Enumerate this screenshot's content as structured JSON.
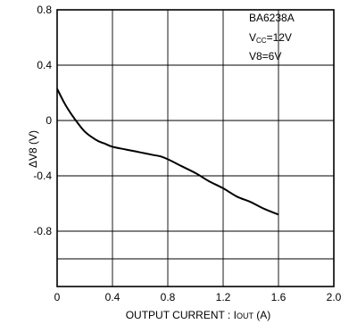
{
  "chart_data": {
    "type": "line",
    "xlabel_main": "OUTPUT  CURRENT : I",
    "xlabel_sub": "OUT",
    "xlabel_unit": "  (A)",
    "ylabel_delta": "Δ",
    "ylabel_main": "V8  (V)",
    "xlim": [
      0,
      2.0
    ],
    "ylim": [
      -1.2,
      0.8
    ],
    "x_ticks": [
      "0",
      "0.4",
      "0.8",
      "1.2",
      "1.6",
      "2.0"
    ],
    "x_tick_values": [
      0,
      0.4,
      0.8,
      1.2,
      1.6,
      2.0
    ],
    "y_ticks": [
      "0.8",
      "0.4",
      "0",
      "-0.4",
      "-0.8"
    ],
    "y_tick_values": [
      0.8,
      0.4,
      0,
      -0.4,
      -0.8
    ],
    "grid": true,
    "annotations": {
      "model": "BA6238A",
      "vcc_prefix": "V",
      "vcc_sub": "CC",
      "vcc_value": "=12V",
      "v8": "V8=6V"
    },
    "series": [
      {
        "x": [
          0.0,
          0.05,
          0.1,
          0.15,
          0.2,
          0.25,
          0.3,
          0.35,
          0.4,
          0.5,
          0.6,
          0.7,
          0.75,
          0.8,
          0.9,
          1.0,
          1.1,
          1.2,
          1.3,
          1.4,
          1.5,
          1.6
        ],
        "y": [
          0.23,
          0.13,
          0.05,
          -0.02,
          -0.08,
          -0.12,
          -0.15,
          -0.17,
          -0.19,
          -0.21,
          -0.23,
          -0.25,
          -0.26,
          -0.28,
          -0.33,
          -0.38,
          -0.44,
          -0.49,
          -0.55,
          -0.59,
          -0.64,
          -0.68
        ]
      }
    ]
  }
}
